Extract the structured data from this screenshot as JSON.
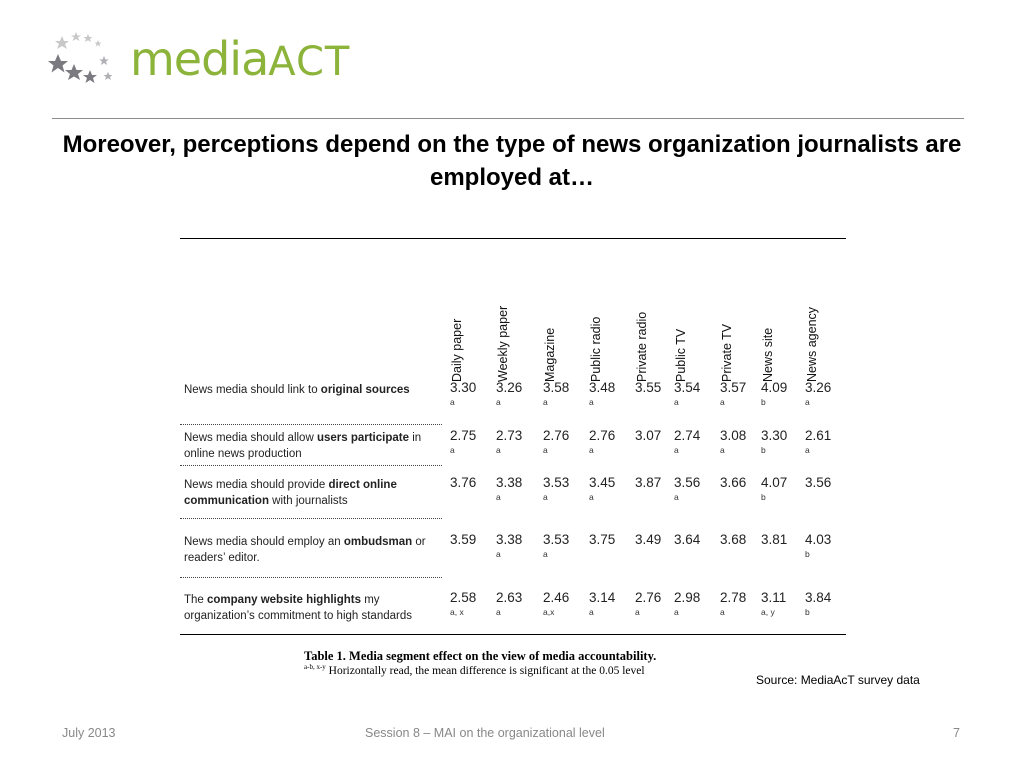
{
  "logo": {
    "text_media": "media",
    "text_act": "ACT"
  },
  "title": "Moreover, perceptions depend on the type of news organization journalists are employed at…",
  "table": {
    "columns": [
      "Daily paper",
      "Weekly paper",
      "Magazine",
      "Public radio",
      "Private radio",
      "Public TV",
      "Private  TV",
      "News site",
      "News agency"
    ],
    "rows": [
      {
        "label_parts": [
          {
            "t": "News media should link to ",
            "b": false
          },
          {
            "t": "original sources",
            "b": true
          }
        ],
        "values": [
          "3.30",
          "3.26",
          "3.58",
          "3.48",
          "3.55",
          "3.54",
          "3.57",
          "4.09",
          "3.26"
        ],
        "subs": [
          "a",
          "a",
          "a",
          "a",
          "",
          "a",
          "a",
          "b",
          "a"
        ]
      },
      {
        "label_parts": [
          {
            "t": "News media should allow ",
            "b": false
          },
          {
            "t": "users participate",
            "b": true
          },
          {
            "t": " in online news production",
            "b": false
          }
        ],
        "values": [
          "2.75",
          "2.73",
          "2.76",
          "2.76",
          "3.07",
          "2.74",
          "3.08",
          "3.30",
          "2.61"
        ],
        "subs": [
          "a",
          "a",
          "a",
          "a",
          "",
          "a",
          "a",
          "b",
          "a"
        ]
      },
      {
        "label_parts": [
          {
            "t": "News media should provide ",
            "b": false
          },
          {
            "t": "direct online communication",
            "b": true
          },
          {
            "t": " with journalists",
            "b": false
          }
        ],
        "values": [
          "3.76",
          "3.38",
          "3.53",
          "3.45",
          "3.87",
          "3.56",
          "3.66",
          "4.07",
          "3.56"
        ],
        "subs": [
          "",
          "a",
          "a",
          "a",
          "",
          "a",
          "",
          "b",
          ""
        ]
      },
      {
        "label_parts": [
          {
            "t": "News media should employ an ",
            "b": false
          },
          {
            "t": "ombudsman",
            "b": true
          },
          {
            "t": " or readers’ editor.",
            "b": false
          }
        ],
        "values": [
          "3.59",
          "3.38",
          "3.53",
          "3.75",
          "3.49",
          "3.64",
          "3.68",
          "3.81",
          "4.03"
        ],
        "subs": [
          "",
          "a",
          "a",
          "",
          "",
          "",
          "",
          "",
          "b"
        ]
      },
      {
        "label_parts": [
          {
            "t": "The ",
            "b": false
          },
          {
            "t": "company website highlights",
            "b": true
          },
          {
            "t": " my organization’s commitment to high standards",
            "b": false
          }
        ],
        "values": [
          "2.58",
          "2.63",
          "2.46",
          "3.14",
          "2.76",
          "2.98",
          "2.78",
          "3.11",
          "3.84"
        ],
        "subs": [
          "a, x",
          "a",
          "a,x",
          "a",
          "a",
          "a",
          "a",
          "a, y",
          "b"
        ]
      }
    ]
  },
  "caption": "Table  1. Media segment effect on the view of media accountability.",
  "caption_note_sup": "a-b, x-y",
  "caption_note": "Horizontally read, the mean difference is significant at the 0.05 level",
  "source": "Source: MediaAcT survey data",
  "footer": {
    "date": "July 2013",
    "session": "Session 8 – MAI on the organizational level",
    "page": "7"
  },
  "colors": {
    "brand_green": "#8cb33a",
    "footer_gray": "#888888"
  }
}
